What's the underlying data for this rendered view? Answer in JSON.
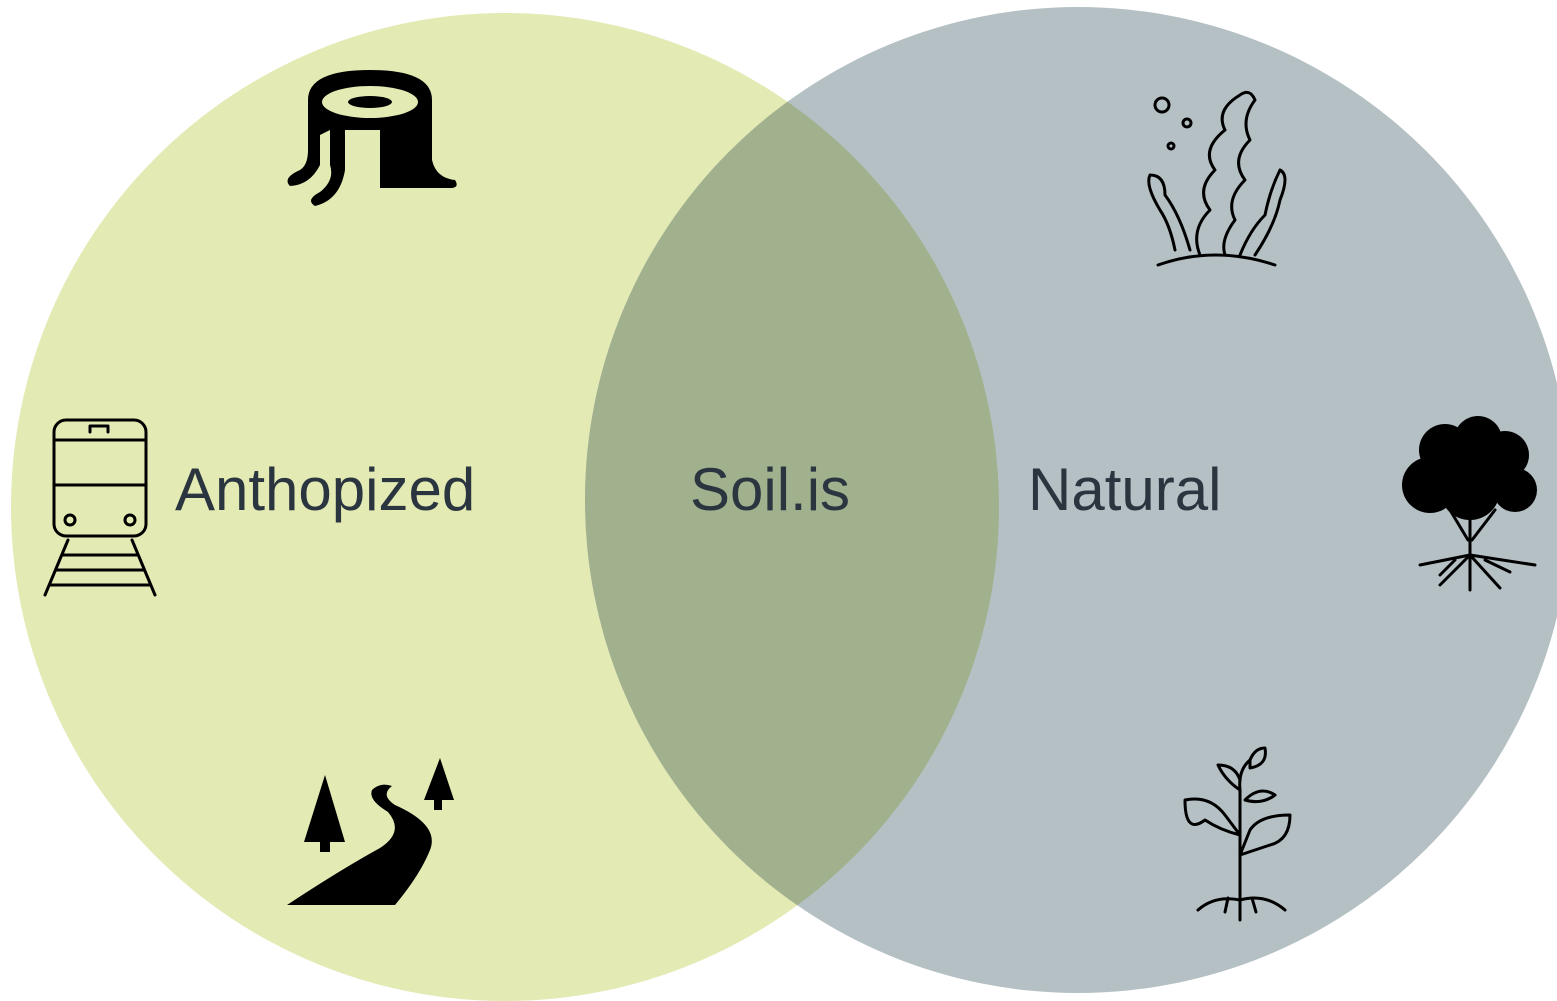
{
  "diagram": {
    "left_label": "Anthopized",
    "center_label": "Soil.is",
    "right_label": "Natural"
  }
}
